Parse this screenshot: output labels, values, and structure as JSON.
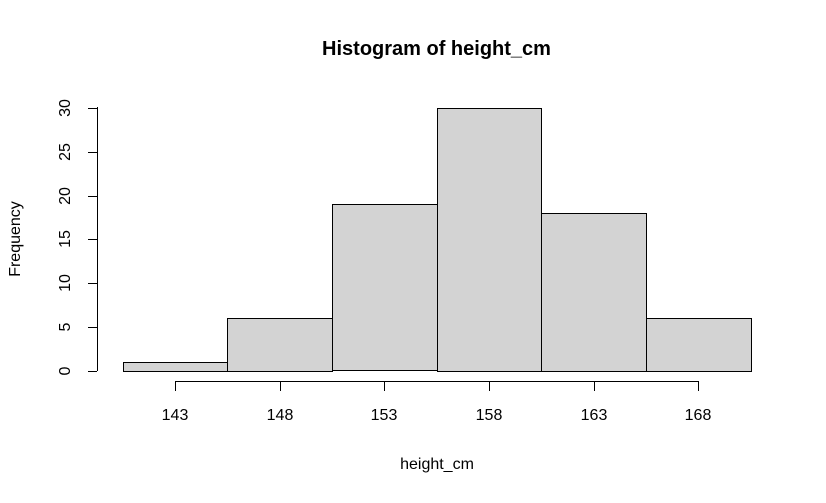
{
  "chart_data": {
    "type": "bar",
    "subtype": "histogram",
    "title": "Histogram of height_cm",
    "xlabel": "height_cm",
    "ylabel": "Frequency",
    "categories": [
      "143",
      "148",
      "153",
      "158",
      "163",
      "168"
    ],
    "values": [
      1,
      6,
      19,
      30,
      18,
      6
    ],
    "y_ticks": [
      0,
      5,
      10,
      15,
      20,
      25,
      30
    ],
    "ylim": [
      0,
      30
    ],
    "grid": "off",
    "legend": "none",
    "bar_fill": "#d3d3d3",
    "bar_border": "#000000",
    "axis_color": "#000000",
    "background": "#ffffff"
  }
}
